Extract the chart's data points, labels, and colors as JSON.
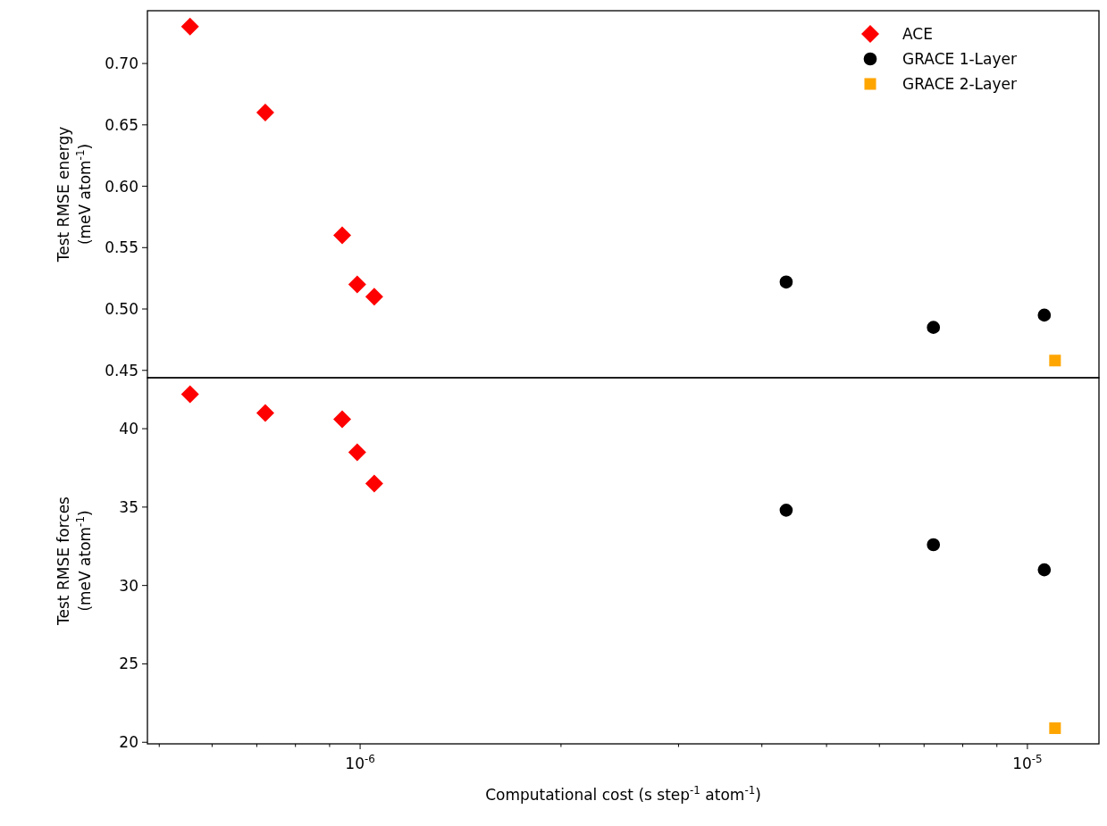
{
  "chart_data": [
    {
      "type": "scatter",
      "ylabel": "Test RMSE energy\n(meV atom$^{-1}$)",
      "log": "x",
      "legend": "top right",
      "xlim": [
        4.8e-07,
        1.28e-05
      ],
      "ylim": [
        0.444,
        0.743
      ],
      "yticks": [
        {
          "value": 0.45,
          "label": "0.45"
        },
        {
          "value": 0.5,
          "label": "0.50"
        },
        {
          "value": 0.55,
          "label": "0.55"
        },
        {
          "value": 0.6,
          "label": "0.60"
        },
        {
          "value": 0.65,
          "label": "0.65"
        },
        {
          "value": 0.7,
          "label": "0.70"
        }
      ],
      "series": [
        {
          "name": "ACE",
          "color": "#ff0000",
          "marker": "diamond",
          "x": [
            5.56e-07,
            7.21e-07,
            9.4e-07,
            9.9e-07,
            1.05e-06
          ],
          "values": [
            0.73,
            0.66,
            0.56,
            0.52,
            0.51
          ]
        },
        {
          "name": "GRACE 1-Layer",
          "color": "#000000",
          "marker": "circle",
          "x": [
            4.35e-06,
            7.23e-06,
            1.06e-05
          ],
          "values": [
            0.522,
            0.485,
            0.495
          ]
        },
        {
          "name": "GRACE 2-Layer",
          "color": "#ffa500",
          "marker": "square",
          "x": [
            1.1e-05
          ],
          "values": [
            0.458
          ]
        }
      ]
    },
    {
      "type": "scatter",
      "ylabel": "Test RMSE forces\n(meV atom$^{-1}$)",
      "xlabel": "Computational cost (s step$^{-1}$ atom$^{-1}$)",
      "log": "x",
      "xlim": [
        4.8e-07,
        1.28e-05
      ],
      "ylim": [
        19.9,
        43.25
      ],
      "xticks": [
        {
          "value": 5e-07,
          "label": null
        },
        {
          "value": 6e-07,
          "label": null
        },
        {
          "value": 7e-07,
          "label": null
        },
        {
          "value": 8e-07,
          "label": null
        },
        {
          "value": 9e-07,
          "label": null
        },
        {
          "value": 1e-06,
          "label": "10$^{-6}$"
        },
        {
          "value": 2e-06,
          "label": null
        },
        {
          "value": 3e-06,
          "label": null
        },
        {
          "value": 4e-06,
          "label": null
        },
        {
          "value": 5e-06,
          "label": null
        },
        {
          "value": 6e-06,
          "label": null
        },
        {
          "value": 7e-06,
          "label": null
        },
        {
          "value": 8e-06,
          "label": null
        },
        {
          "value": 9e-06,
          "label": null
        },
        {
          "value": 1e-05,
          "label": "10$^{-5}$"
        }
      ],
      "yticks": [
        20,
        25,
        30,
        35,
        40
      ],
      "series": [
        {
          "color": "#ff0000",
          "marker": "diamond",
          "x": [
            5.56e-07,
            7.21e-07,
            9.4e-07,
            9.9e-07,
            1.05e-06
          ],
          "values": [
            42.2,
            41.0,
            40.6,
            38.5,
            36.5
          ]
        },
        {
          "color": "#000000",
          "marker": "circle",
          "x": [
            4.35e-06,
            7.23e-06,
            1.06e-05
          ],
          "values": [
            34.8,
            32.6,
            31.0
          ]
        },
        {
          "color": "#ffa500",
          "marker": "square",
          "x": [
            1.1e-05
          ],
          "values": [
            20.9
          ]
        }
      ]
    }
  ]
}
